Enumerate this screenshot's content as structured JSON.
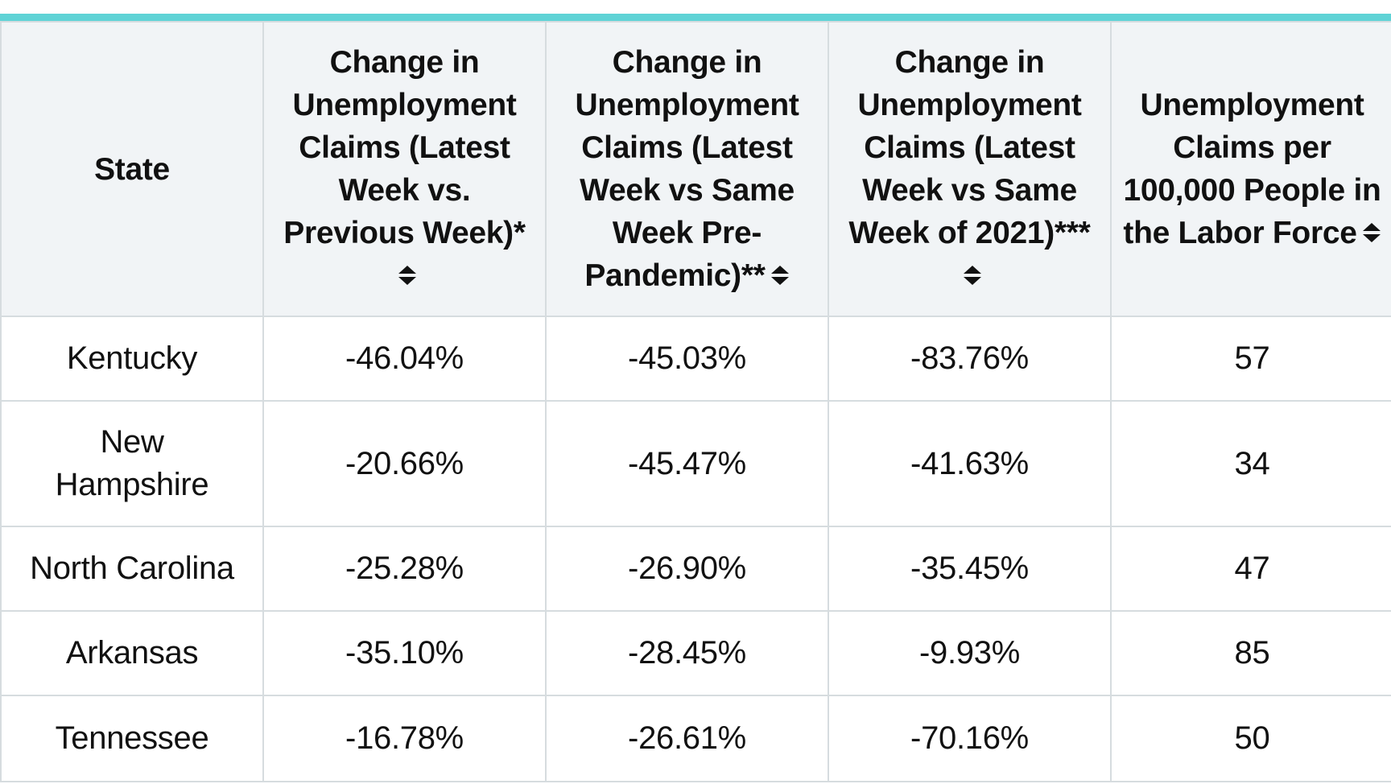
{
  "table": {
    "columns": [
      {
        "label": "State",
        "sortable": false
      },
      {
        "label": "Change in Unemployment Claims (Latest Week vs. Previous Week)*",
        "sortable": true
      },
      {
        "label": "Change in Unemployment Claims (Latest Week vs Same Week Pre-Pandemic)**",
        "sortable": true
      },
      {
        "label": "Change in Unemployment Claims (Latest Week vs Same Week of 2021)***",
        "sortable": true
      },
      {
        "label": "Unemployment Claims per 100,000 People in the Labor Force",
        "sortable": true
      }
    ],
    "rows": [
      {
        "state": "Kentucky",
        "wow": "-46.04%",
        "pre": "-45.03%",
        "y2021": "-83.76%",
        "per100k": "57"
      },
      {
        "state": "New Hampshire",
        "wow": "-20.66%",
        "pre": "-45.47%",
        "y2021": "-41.63%",
        "per100k": "34"
      },
      {
        "state": "North Carolina",
        "wow": "-25.28%",
        "pre": "-26.90%",
        "y2021": "-35.45%",
        "per100k": "47"
      },
      {
        "state": "Arkansas",
        "wow": "-35.10%",
        "pre": "-28.45%",
        "y2021": "-9.93%",
        "per100k": "85"
      },
      {
        "state": "Tennessee",
        "wow": "-16.78%",
        "pre": "-26.61%",
        "y2021": "-70.16%",
        "per100k": "50"
      }
    ]
  },
  "colors": {
    "accent": "#5fd3d6",
    "header_bg": "#f1f4f6",
    "border": "#d6dcdf",
    "text": "#111111"
  },
  "icons": {
    "sort": "sort-icon"
  }
}
